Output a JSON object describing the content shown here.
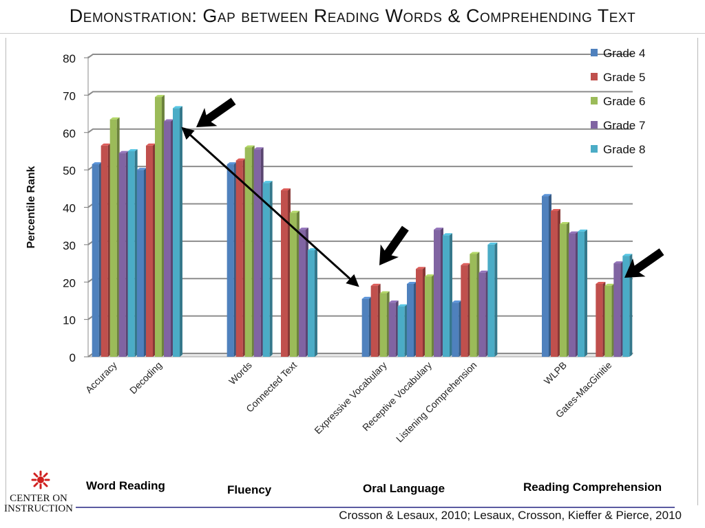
{
  "title": "Demonstration: Gap between Reading Words & Comprehending Text",
  "citation": "Crosson & Lesaux, 2010; Lesaux, Crosson, Kieffer & Pierce, 2010",
  "logo": {
    "line1": "CENTER ON",
    "line2": "INSTRUCTION"
  },
  "groups": [
    "Word Reading",
    "Fluency",
    "Oral Language",
    "Reading Comprehension"
  ],
  "chart_data": {
    "type": "bar",
    "title": "",
    "ylabel": "Percentile Rank",
    "xlabel": "",
    "ylim": [
      0,
      80
    ],
    "yticks": [
      0,
      10,
      20,
      30,
      40,
      50,
      60,
      70,
      80
    ],
    "grid": true,
    "legend_position": "top-right",
    "categories": [
      "Accuracy",
      "Decoding",
      "",
      "Words",
      "Connected Text",
      "",
      "Expressive Vocabulary",
      "Receptive Vocabulary",
      "Listening Comprehension",
      "",
      "WLPB",
      "Gates-MacGinitie"
    ],
    "series": [
      {
        "name": "Grade 4",
        "color": "#4f81bd",
        "values": [
          51.5,
          50,
          null,
          51.5,
          null,
          null,
          15.5,
          19.5,
          14.5,
          null,
          43,
          null
        ]
      },
      {
        "name": "Grade 5",
        "color": "#c0504d",
        "values": [
          56.5,
          56.5,
          null,
          52.5,
          44.5,
          null,
          19,
          23.5,
          24.5,
          null,
          39,
          19.5
        ]
      },
      {
        "name": "Grade 6",
        "color": "#9bbb59",
        "values": [
          63.5,
          69.5,
          null,
          56,
          38.5,
          null,
          17,
          21.5,
          27.5,
          null,
          35.5,
          19
        ]
      },
      {
        "name": "Grade 7",
        "color": "#8064a2",
        "values": [
          54.5,
          63,
          null,
          55.5,
          34,
          null,
          14.5,
          34,
          22.5,
          null,
          33,
          25
        ]
      },
      {
        "name": "Grade 8",
        "color": "#4bacc6",
        "values": [
          55,
          66.5,
          null,
          46.5,
          28.5,
          null,
          13.5,
          32.5,
          30,
          null,
          33.5,
          27
        ]
      }
    ]
  }
}
